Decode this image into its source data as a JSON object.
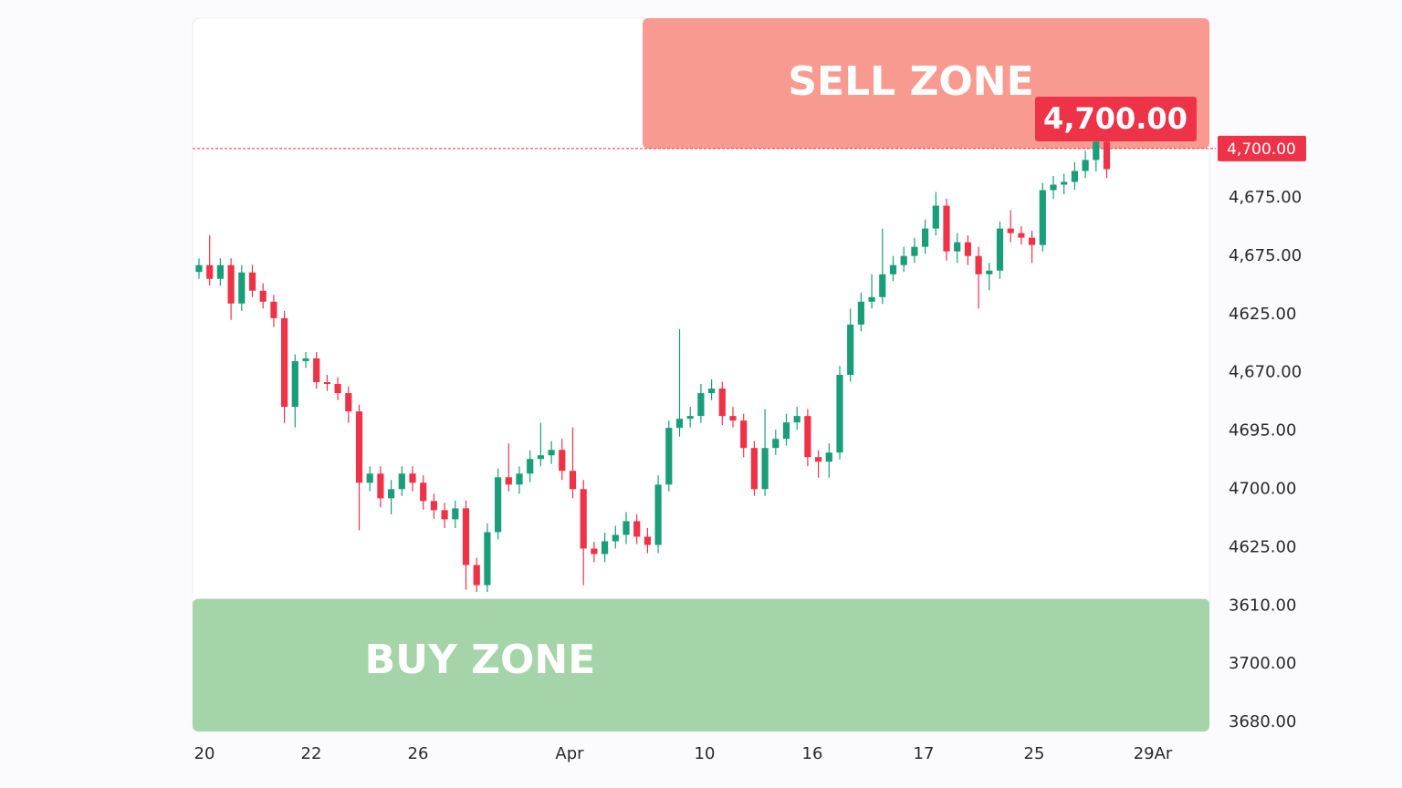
{
  "chart_data": {
    "type": "candlestick",
    "ylim": [
      4445,
      4757
    ],
    "up_color": "#1a9e7a",
    "down_color": "#ee3348",
    "open": [
      4646,
      4649,
      4643,
      4649,
      4632.2,
      4645.8,
      4637.8,
      4633,
      4625.8,
      4587,
      4607,
      4608.2,
      4597.8,
      4597,
      4593,
      4585,
      4553.8,
      4557.8,
      4547,
      4551,
      4557.8,
      4553.8,
      4545.8,
      4541.8,
      4537.8,
      4542.6,
      4517.8,
      4509,
      4532.2,
      4556.2,
      4553,
      4557.8,
      4564.2,
      4565.8,
      4568.2,
      4559,
      4551,
      4525,
      4522.6,
      4528.2,
      4531,
      4537,
      4530.2,
      4526.6,
      4553,
      4577.8,
      4581.8,
      4583,
      4593,
      4595,
      4583,
      4581,
      4569,
      4551,
      4569,
      4573,
      4580.2,
      4583,
      4565,
      4563,
      4567,
      4601,
      4623,
      4633,
      4635,
      4645,
      4649,
      4653,
      4657,
      4665,
      4675,
      4655,
      4659,
      4653,
      4645,
      4646.6,
      4665,
      4663,
      4661,
      4657.8,
      4681.8,
      4684.2,
      4685.4,
      4690.2,
      4695,
      4703
    ],
    "high": [
      4652,
      4662,
      4652,
      4652,
      4649,
      4649,
      4641,
      4636,
      4629,
      4610,
      4611,
      4611,
      4601,
      4600,
      4596,
      4588,
      4561,
      4561,
      4555,
      4561,
      4561,
      4557,
      4549,
      4545,
      4546,
      4546,
      4521,
      4536,
      4560,
      4571,
      4561,
      4568,
      4580,
      4572,
      4573,
      4578,
      4555,
      4528,
      4532,
      4535,
      4541,
      4540,
      4534,
      4557,
      4581,
      4621,
      4587,
      4597,
      4599,
      4598,
      4587,
      4584,
      4572,
      4586,
      4577,
      4584,
      4587,
      4586,
      4568,
      4571,
      4605,
      4630,
      4637,
      4645,
      4665,
      4653,
      4657,
      4661,
      4669,
      4681,
      4678,
      4663,
      4662,
      4657,
      4650,
      4668,
      4673,
      4666,
      4664,
      4685,
      4688,
      4689,
      4694,
      4699,
      4707,
      4706
    ],
    "low": [
      4643,
      4640,
      4640,
      4625,
      4629,
      4635,
      4630,
      4622,
      4580,
      4578,
      4604,
      4595,
      4594,
      4590,
      4580,
      4533,
      4550,
      4543,
      4540,
      4548,
      4550,
      4542,
      4538,
      4534,
      4534,
      4507,
      4506,
      4506,
      4529,
      4550,
      4549,
      4554,
      4561,
      4562,
      4555,
      4547,
      4509,
      4519,
      4519,
      4525,
      4527,
      4527,
      4523,
      4523,
      4550,
      4574,
      4578,
      4580,
      4590,
      4579,
      4578,
      4565,
      4548,
      4548,
      4566,
      4570,
      4577,
      4561,
      4556,
      4556,
      4564,
      4598,
      4620,
      4630,
      4632,
      4642,
      4646,
      4650,
      4654,
      4662,
      4651,
      4650,
      4649,
      4630,
      4638,
      4643,
      4659,
      4658,
      4650,
      4655,
      4678,
      4680,
      4682,
      4687,
      4690,
      4687
    ],
    "close": [
      4649,
      4643,
      4649,
      4632.2,
      4645.8,
      4637.8,
      4633,
      4625.8,
      4587,
      4607,
      4608.2,
      4597.8,
      4597,
      4593,
      4585,
      4553.8,
      4557.8,
      4547,
      4551,
      4557.8,
      4553.8,
      4545.8,
      4541.8,
      4537.8,
      4542.6,
      4517.8,
      4509,
      4532.2,
      4556.2,
      4553,
      4557.8,
      4564.2,
      4565.8,
      4568.2,
      4559,
      4551,
      4525,
      4522.6,
      4528.2,
      4531,
      4537,
      4530.2,
      4526.6,
      4553,
      4577.8,
      4581.8,
      4583,
      4593,
      4595,
      4583,
      4581,
      4569,
      4551,
      4569,
      4573,
      4580.2,
      4583,
      4565,
      4563,
      4567,
      4601,
      4623,
      4633,
      4635,
      4645,
      4649,
      4653,
      4657,
      4665,
      4675,
      4655,
      4659,
      4653,
      4645,
      4646.6,
      4665,
      4663,
      4661,
      4657.8,
      4681.8,
      4684.2,
      4685.4,
      4690.2,
      4695,
      4703,
      4691
    ],
    "price_line": {
      "value": 4700,
      "label": "4,700.00",
      "color": "#ee3348"
    },
    "sell_zone": {
      "label": "SELL ZONE",
      "range": [
        4700,
        4757
      ],
      "color": "#f99a90"
    },
    "buy_zone": {
      "label": "BUY ZONE",
      "range": [
        4445,
        4503
      ],
      "color": "#a5d4a8"
    },
    "y_axis_labels": [
      "4,675.00",
      "4,675.00",
      "4625.00",
      "4,670.00",
      "4695.00",
      "4700.00",
      "4625.00",
      "3610.00",
      "3700.00",
      "3680.00"
    ],
    "x_axis_labels": [
      "20",
      "22",
      "26",
      "Apr",
      "10",
      "16",
      "17",
      "25",
      "29Ar"
    ]
  }
}
